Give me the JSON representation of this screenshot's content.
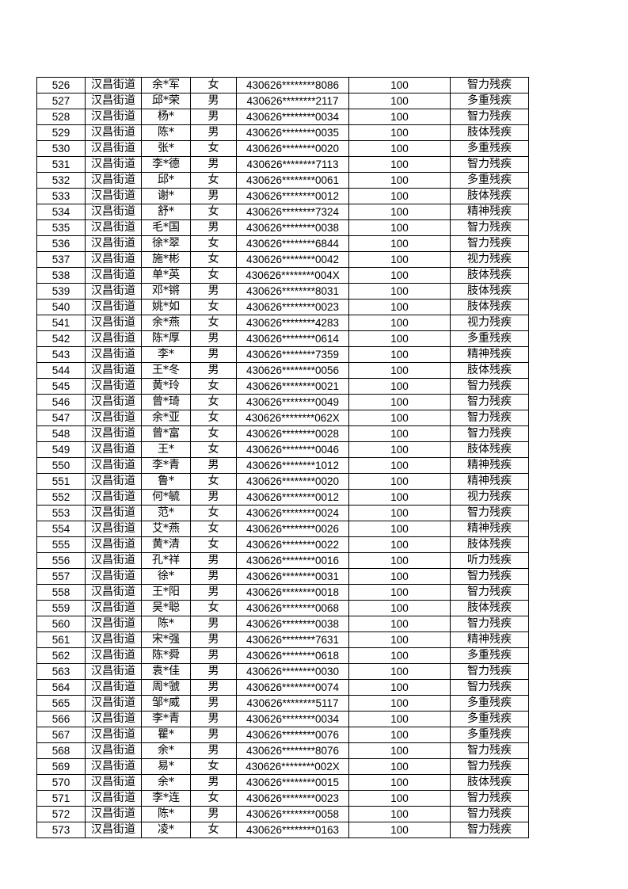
{
  "table": {
    "rows": [
      [
        "526",
        "汉昌街道",
        "余*军",
        "女",
        "430626********8086",
        "100",
        "智力残疾"
      ],
      [
        "527",
        "汉昌街道",
        "邱*荣",
        "男",
        "430626********2117",
        "100",
        "多重残疾"
      ],
      [
        "528",
        "汉昌街道",
        "杨*",
        "男",
        "430626********0034",
        "100",
        "智力残疾"
      ],
      [
        "529",
        "汉昌街道",
        "陈*",
        "男",
        "430626********0035",
        "100",
        "肢体残疾"
      ],
      [
        "530",
        "汉昌街道",
        "张*",
        "女",
        "430626********0020",
        "100",
        "多重残疾"
      ],
      [
        "531",
        "汉昌街道",
        "李*德",
        "男",
        "430626********7113",
        "100",
        "智力残疾"
      ],
      [
        "532",
        "汉昌街道",
        "邱*",
        "女",
        "430626********0061",
        "100",
        "多重残疾"
      ],
      [
        "533",
        "汉昌街道",
        "谢*",
        "男",
        "430626********0012",
        "100",
        "肢体残疾"
      ],
      [
        "534",
        "汉昌街道",
        "舒*",
        "女",
        "430626********7324",
        "100",
        "精神残疾"
      ],
      [
        "535",
        "汉昌街道",
        "毛*国",
        "男",
        "430626********0038",
        "100",
        "智力残疾"
      ],
      [
        "536",
        "汉昌街道",
        "徐*翠",
        "女",
        "430626********6844",
        "100",
        "智力残疾"
      ],
      [
        "537",
        "汉昌街道",
        "施*彬",
        "女",
        "430626********0042",
        "100",
        "视力残疾"
      ],
      [
        "538",
        "汉昌街道",
        "单*英",
        "女",
        "430626********004X",
        "100",
        "肢体残疾"
      ],
      [
        "539",
        "汉昌街道",
        "邓*锵",
        "男",
        "430626********8031",
        "100",
        "肢体残疾"
      ],
      [
        "540",
        "汉昌街道",
        "姚*如",
        "女",
        "430626********0023",
        "100",
        "肢体残疾"
      ],
      [
        "541",
        "汉昌街道",
        "余*燕",
        "女",
        "430626********4283",
        "100",
        "视力残疾"
      ],
      [
        "542",
        "汉昌街道",
        "陈*厚",
        "男",
        "430626********0614",
        "100",
        "多重残疾"
      ],
      [
        "543",
        "汉昌街道",
        "李*",
        "男",
        "430626********7359",
        "100",
        "精神残疾"
      ],
      [
        "544",
        "汉昌街道",
        "王*冬",
        "男",
        "430626********0056",
        "100",
        "肢体残疾"
      ],
      [
        "545",
        "汉昌街道",
        "黄*玲",
        "女",
        "430626********0021",
        "100",
        "智力残疾"
      ],
      [
        "546",
        "汉昌街道",
        "曾*琦",
        "女",
        "430626********0049",
        "100",
        "智力残疾"
      ],
      [
        "547",
        "汉昌街道",
        "余*亚",
        "女",
        "430626********062X",
        "100",
        "智力残疾"
      ],
      [
        "548",
        "汉昌街道",
        "曾*富",
        "女",
        "430626********0028",
        "100",
        "智力残疾"
      ],
      [
        "549",
        "汉昌街道",
        "王*",
        "女",
        "430626********0046",
        "100",
        "肢体残疾"
      ],
      [
        "550",
        "汉昌街道",
        "李*青",
        "男",
        "430626********1012",
        "100",
        "精神残疾"
      ],
      [
        "551",
        "汉昌街道",
        "鲁*",
        "女",
        "430626********0020",
        "100",
        "精神残疾"
      ],
      [
        "552",
        "汉昌街道",
        "何*毓",
        "男",
        "430626********0012",
        "100",
        "视力残疾"
      ],
      [
        "553",
        "汉昌街道",
        "范*",
        "女",
        "430626********0024",
        "100",
        "智力残疾"
      ],
      [
        "554",
        "汉昌街道",
        "艾*燕",
        "女",
        "430626********0026",
        "100",
        "精神残疾"
      ],
      [
        "555",
        "汉昌街道",
        "黄*清",
        "女",
        "430626********0022",
        "100",
        "肢体残疾"
      ],
      [
        "556",
        "汉昌街道",
        "孔*祥",
        "男",
        "430626********0016",
        "100",
        "听力残疾"
      ],
      [
        "557",
        "汉昌街道",
        "徐*",
        "男",
        "430626********0031",
        "100",
        "智力残疾"
      ],
      [
        "558",
        "汉昌街道",
        "王*阳",
        "男",
        "430626********0018",
        "100",
        "智力残疾"
      ],
      [
        "559",
        "汉昌街道",
        "吴*聪",
        "女",
        "430626********0068",
        "100",
        "肢体残疾"
      ],
      [
        "560",
        "汉昌街道",
        "陈*",
        "男",
        "430626********0038",
        "100",
        "智力残疾"
      ],
      [
        "561",
        "汉昌街道",
        "宋*强",
        "男",
        "430626********7631",
        "100",
        "精神残疾"
      ],
      [
        "562",
        "汉昌街道",
        "陈*舜",
        "男",
        "430626********0618",
        "100",
        "多重残疾"
      ],
      [
        "563",
        "汉昌街道",
        "袁*佳",
        "男",
        "430626********0030",
        "100",
        "智力残疾"
      ],
      [
        "564",
        "汉昌街道",
        "周*虢",
        "男",
        "430626********0074",
        "100",
        "智力残疾"
      ],
      [
        "565",
        "汉昌街道",
        "邹*威",
        "男",
        "430626********5117",
        "100",
        "多重残疾"
      ],
      [
        "566",
        "汉昌街道",
        "李*青",
        "男",
        "430626********0034",
        "100",
        "多重残疾"
      ],
      [
        "567",
        "汉昌街道",
        "瞿*",
        "男",
        "430626********0076",
        "100",
        "多重残疾"
      ],
      [
        "568",
        "汉昌街道",
        "余*",
        "男",
        "430626********8076",
        "100",
        "智力残疾"
      ],
      [
        "569",
        "汉昌街道",
        "易*",
        "女",
        "430626********002X",
        "100",
        "智力残疾"
      ],
      [
        "570",
        "汉昌街道",
        "余*",
        "男",
        "430626********0015",
        "100",
        "肢体残疾"
      ],
      [
        "571",
        "汉昌街道",
        "李*连",
        "女",
        "430626********0023",
        "100",
        "智力残疾"
      ],
      [
        "572",
        "汉昌街道",
        "陈*",
        "男",
        "430626********0058",
        "100",
        "智力残疾"
      ],
      [
        "573",
        "汉昌街道",
        "凌*",
        "女",
        "430626********0163",
        "100",
        "智力残疾"
      ]
    ]
  }
}
